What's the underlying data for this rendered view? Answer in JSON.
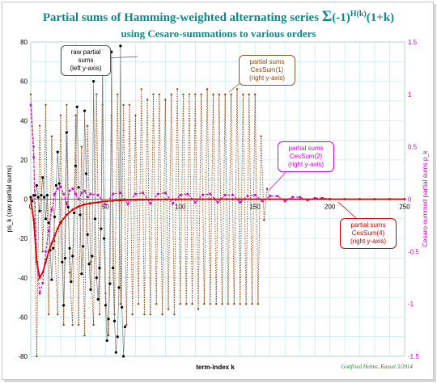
{
  "chart_data": {
    "type": "line",
    "title": "Partial sums of Hamming-weighted alternating series Σ(-1)^H(k)(1+k)",
    "subtitle": "using Cesaro-summations to various orders",
    "title_parts": {
      "main": "Partial sums of Hamming-weighted alternating series ",
      "sigma": "Σ",
      "term": "(-1)",
      "sup": "H(k)",
      "tail": "(1+k)"
    },
    "xlabel": "term-index k",
    "ylabel_left": "ps_k (raw partial sums)",
    "ylabel_right": "Cesaro-summed partial sums p_k",
    "xlim": [
      0,
      250
    ],
    "xticks": [
      0,
      50,
      100,
      150,
      200,
      250
    ],
    "ylim_left": [
      -80,
      80
    ],
    "yticks_left": [
      -80,
      -60,
      -40,
      -20,
      0,
      20,
      40,
      60,
      80
    ],
    "ylim_right": [
      -1.5,
      1.5
    ],
    "yticks_right": [
      -1.5,
      -1,
      -0.5,
      0,
      0.5,
      1,
      1.5
    ],
    "grid": true,
    "colors": {
      "raw": "#7a7a7a",
      "raw_marker": "#000000",
      "c1": "#8b4513",
      "c2": "#cc00cc",
      "c4": "#dd0000",
      "grid": "#b8e6e6",
      "title": "#0a8a8a"
    },
    "series": [
      {
        "name": "raw partial sums",
        "axis": "left",
        "x": [
          0,
          1,
          2,
          3,
          4,
          5,
          6,
          7,
          8,
          9,
          10,
          11,
          12,
          13,
          14,
          15,
          16,
          17,
          18,
          19,
          20,
          21,
          22,
          23,
          24,
          25,
          26,
          27,
          28,
          29,
          30,
          31,
          32,
          33,
          34,
          35,
          36,
          37,
          38,
          39,
          40,
          41,
          42,
          43,
          44,
          45,
          46,
          47,
          48,
          49,
          50,
          51,
          52,
          53,
          54,
          55,
          56,
          57,
          58,
          59,
          60,
          61,
          62,
          63
        ],
        "y": [
          1,
          -1,
          2,
          2,
          7,
          1,
          -6,
          2,
          11,
          1,
          -10,
          2,
          -12,
          -26,
          -41,
          -25,
          -9,
          7,
          24,
          8,
          -12,
          -32,
          -54,
          -30,
          34,
          -4,
          -25,
          -42,
          -29,
          -7,
          17,
          47,
          6,
          -8,
          -38,
          -24,
          45,
          13,
          -18,
          -33,
          -46,
          -29,
          60,
          -10,
          -40,
          -51,
          -35,
          -15,
          70,
          -20,
          -54,
          -72,
          -61,
          -43,
          75,
          -35,
          -62,
          -78,
          -70,
          -45,
          78,
          -55,
          -80,
          -65
        ]
      },
      {
        "name": "CesSum(1)",
        "axis": "right",
        "x": [
          0,
          2,
          4,
          6,
          8,
          10,
          12,
          14,
          16,
          18,
          20,
          22,
          24,
          26,
          28,
          30,
          32,
          34,
          36,
          38,
          40,
          42,
          44,
          46,
          48,
          50,
          52,
          54,
          56,
          58,
          60,
          62,
          64,
          66,
          68,
          70,
          72,
          74,
          76,
          78,
          80,
          82,
          84,
          86,
          88,
          90,
          92,
          94,
          96,
          98,
          100,
          102,
          104,
          106,
          108,
          110,
          112,
          114,
          116,
          118,
          120,
          122,
          124,
          126,
          128,
          130,
          132,
          134,
          136,
          138,
          140,
          142,
          144,
          146,
          148,
          150,
          152,
          154,
          156,
          158,
          160
        ],
        "y": [
          1.0,
          0.5,
          -1.5,
          0.7,
          -0.5,
          0.9,
          -1.1,
          0.6,
          -0.4,
          -1.1,
          0.8,
          -1.2,
          0.9,
          -0.7,
          -1.2,
          0.8,
          -1.2,
          0.5,
          -1.3,
          0.7,
          -0.6,
          -1.2,
          1.0,
          -1.1,
          0.9,
          -0.9,
          -1.3,
          0.8,
          -1.1,
          1.0,
          -1.0,
          0.9,
          -1.2,
          0.9,
          -1.1,
          0.8,
          -1.0,
          1.05,
          -1.1,
          0.95,
          -1.1,
          1.0,
          -1.0,
          1.0,
          -1.1,
          0.95,
          -1.05,
          1.0,
          -1.1,
          1.05,
          -1.0,
          1.0,
          -1.0,
          1.0,
          -1.0,
          1.0,
          -1.05,
          1.0,
          -1.0,
          1.05,
          -1.0,
          1.0,
          -1.0,
          1.0,
          -1.0,
          1.0,
          -1.0,
          1.0,
          -1.0,
          1.05,
          -1.0,
          1.0,
          -1.0,
          1.0,
          -1.0,
          1.0,
          -1.0,
          0.6,
          -0.2,
          0.1,
          0.0
        ]
      },
      {
        "name": "CesSum(2)",
        "axis": "right",
        "x": [
          0,
          2,
          4,
          6,
          8,
          10,
          12,
          14,
          16,
          18,
          20,
          22,
          24,
          26,
          28,
          30,
          32,
          34,
          36,
          38,
          40,
          45,
          50,
          55,
          60,
          65,
          70,
          75,
          80,
          85,
          90,
          95,
          100,
          105,
          110,
          115,
          120,
          125,
          130,
          135,
          140,
          145,
          150,
          155,
          160,
          165,
          170,
          175,
          180,
          185,
          190,
          195,
          200,
          210,
          220,
          230,
          240,
          250
        ],
        "y": [
          0.9,
          0.4,
          -0.6,
          -0.9,
          -0.8,
          -0.5,
          -0.3,
          -0.1,
          0.05,
          0.1,
          0.12,
          0.05,
          -0.05,
          0.08,
          0.1,
          0.05,
          0.0,
          0.06,
          0.08,
          0.02,
          0.05,
          0.04,
          -0.05,
          0.05,
          0.06,
          -0.05,
          0.05,
          0.06,
          -0.04,
          0.05,
          0.06,
          -0.04,
          0.04,
          0.05,
          -0.03,
          0.04,
          0.05,
          -0.03,
          0.04,
          0.04,
          -0.03,
          0.03,
          0.04,
          -0.02,
          0.03,
          0.03,
          -0.02,
          0.02,
          0.02,
          -0.01,
          0.01,
          0.01,
          0.0,
          0.0,
          0.0,
          0.0,
          0.0,
          0.0
        ]
      },
      {
        "name": "CesSum(4)",
        "axis": "right",
        "x": [
          0,
          2,
          4,
          6,
          8,
          10,
          12,
          14,
          16,
          18,
          20,
          24,
          28,
          32,
          36,
          40,
          45,
          50,
          55,
          60,
          70,
          80,
          90,
          100,
          120,
          140,
          160,
          180,
          200,
          250
        ],
        "y": [
          0.0,
          -0.2,
          -0.6,
          -0.75,
          -0.7,
          -0.6,
          -0.5,
          -0.42,
          -0.35,
          -0.28,
          -0.22,
          -0.15,
          -0.1,
          -0.07,
          -0.05,
          -0.04,
          -0.03,
          -0.02,
          -0.015,
          -0.01,
          -0.006,
          -0.004,
          -0.002,
          -0.001,
          0.0,
          0.0,
          0.0,
          0.0,
          0.0,
          0.0
        ]
      }
    ],
    "annotations": [
      {
        "id": "raw",
        "lines": [
          "raw partial",
          "sums",
          "(left y-axis)"
        ]
      },
      {
        "id": "c1",
        "lines": [
          "partial sums",
          "CesSum(1)",
          "(right y-axis)"
        ]
      },
      {
        "id": "c2",
        "lines": [
          "partial sums",
          "CesSum(2)",
          "(right y-axis)"
        ]
      },
      {
        "id": "c4",
        "lines": [
          "partial sums",
          "CesSum(4)",
          "(right y-axis)"
        ]
      }
    ],
    "signature": "Gottfried Helms, Kassel 3/2014"
  }
}
